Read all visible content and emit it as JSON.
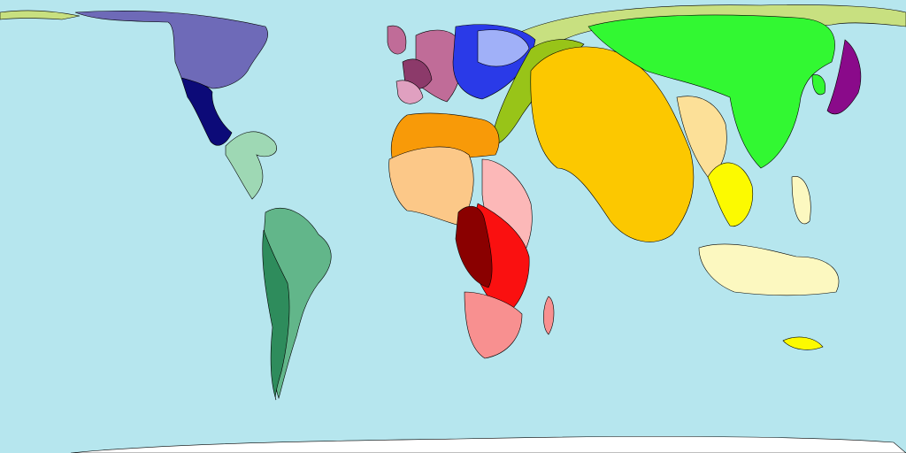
{
  "map": {
    "type": "cartogram",
    "colors": {
      "ocean": "#b6e6ee",
      "north_america": "#6e6ab8",
      "mexico": "#0c0a78",
      "central_america_caribbean": "#9ed8b4",
      "south_america": "#62b68a",
      "south_america_dark": "#2e8c5c",
      "western_europe": "#c06c98",
      "western_europe_dark": "#8c3a6a",
      "western_europe_light": "#e0a0c0",
      "eastern_europe": "#2a3ae8",
      "eastern_europe_light": "#a0b0f8",
      "central_asia": "#98c418",
      "russia_arctic": "#c8e080",
      "north_africa_middle_east": "#f89a08",
      "middle_east_light": "#fcc888",
      "south_asia": "#fcc800",
      "south_asia_light": "#fce098",
      "east_asia": "#32f832",
      "japan": "#8a0a8a",
      "southeast_asia": "#fcfa00",
      "asia_pacific": "#fcf8c0",
      "southern_africa": "#f89090",
      "central_africa": "#fa1010",
      "central_africa_dark": "#8a0000",
      "east_africa_light": "#fcb8b8",
      "antarctica": "#ffffff"
    }
  }
}
